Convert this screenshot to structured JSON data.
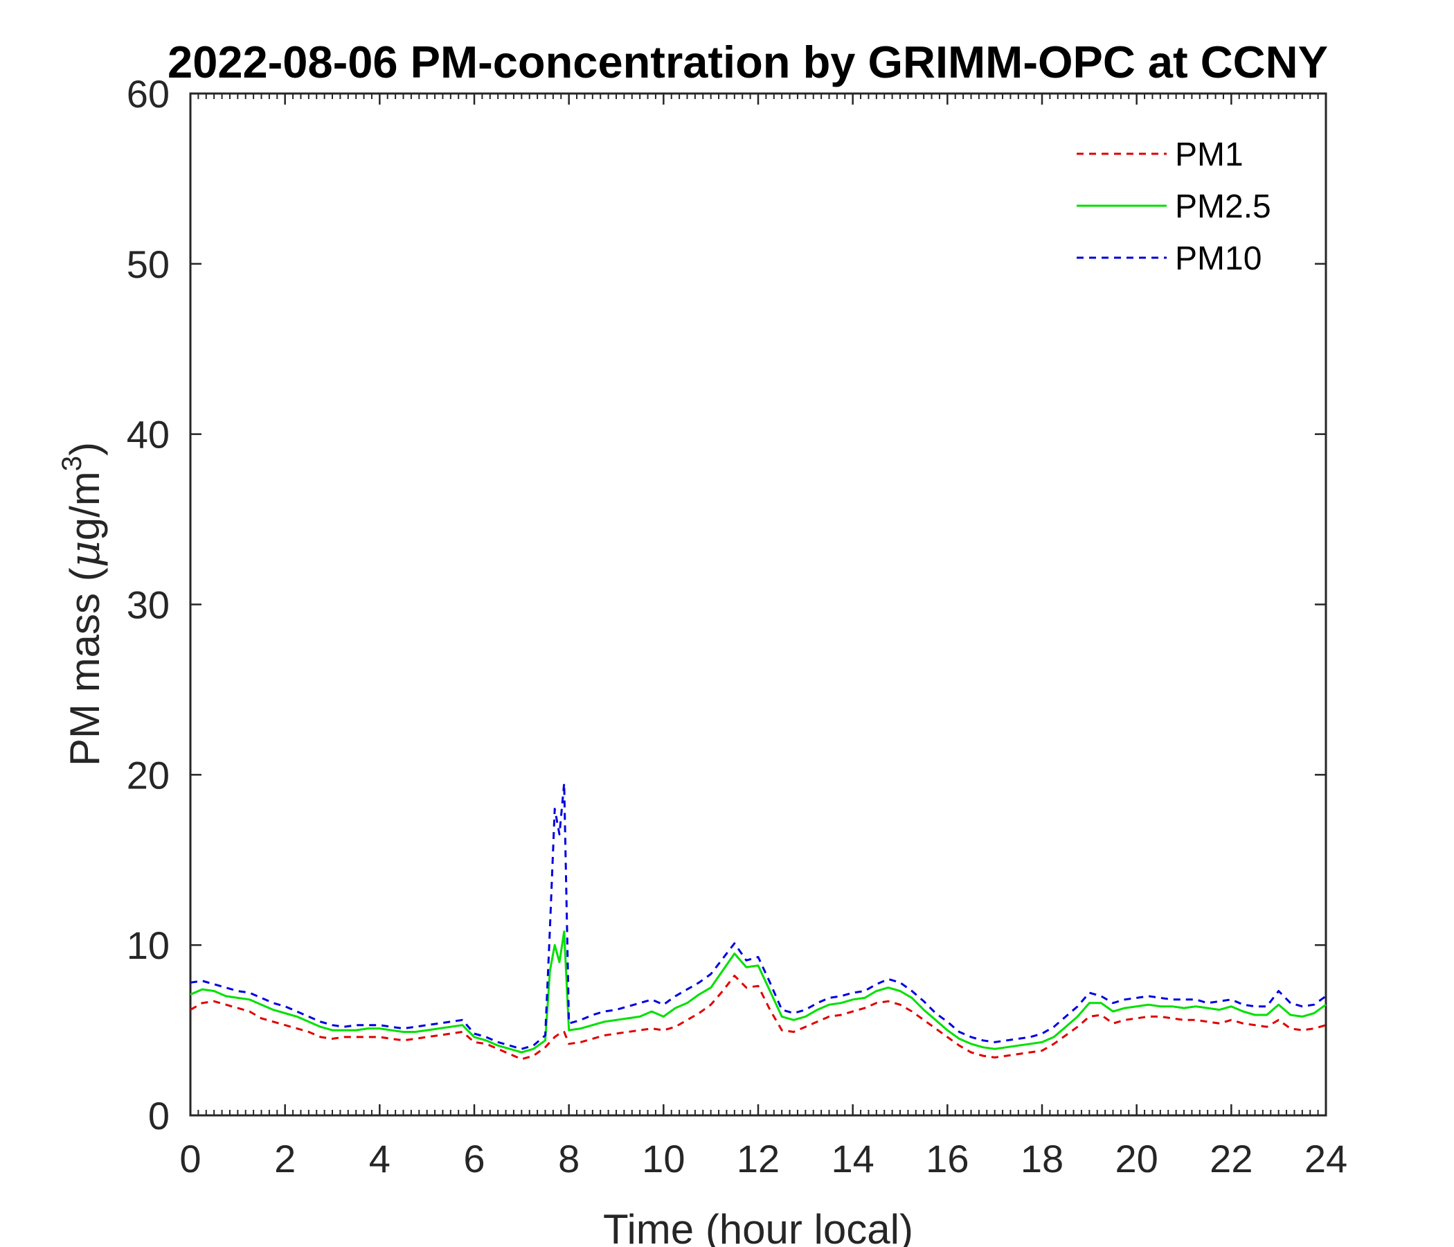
{
  "chart_data": {
    "type": "line",
    "title": "2022-08-06 PM-concentration by GRIMM-OPC at CCNY",
    "xlabel": "Time (hour local)",
    "ylabel": "PM mass (μg/m³)",
    "ylabel_parts": {
      "main": "PM mass (",
      "mu": "μ",
      "unit": "g/m",
      "sup": "3",
      "close": ")"
    },
    "xlim": [
      0,
      24
    ],
    "ylim": [
      0,
      60
    ],
    "xticks": [
      0,
      2,
      4,
      6,
      8,
      10,
      12,
      14,
      16,
      18,
      20,
      22,
      24
    ],
    "yticks": [
      0,
      10,
      20,
      30,
      40,
      50,
      60
    ],
    "xtick_labels": [
      "0",
      "2",
      "4",
      "6",
      "8",
      "10",
      "12",
      "14",
      "16",
      "18",
      "20",
      "22",
      "24"
    ],
    "ytick_labels": [
      "0",
      "10",
      "20",
      "30",
      "40",
      "50",
      "60"
    ],
    "grid": false,
    "legend_position": "top-right",
    "series": [
      {
        "name": "PM1",
        "color": "#e00000",
        "style": "dashed",
        "x": [
          0,
          0.25,
          0.5,
          0.75,
          1,
          1.25,
          1.5,
          1.75,
          2,
          2.25,
          2.5,
          2.75,
          3,
          3.25,
          3.5,
          3.75,
          4,
          4.25,
          4.5,
          4.75,
          5,
          5.25,
          5.5,
          5.75,
          6,
          6.25,
          6.5,
          6.75,
          7,
          7.25,
          7.5,
          7.6,
          7.7,
          7.8,
          7.9,
          8,
          8.25,
          8.5,
          8.75,
          9,
          9.25,
          9.5,
          9.75,
          10,
          10.25,
          10.5,
          10.75,
          11,
          11.25,
          11.5,
          11.75,
          12,
          12.25,
          12.5,
          12.75,
          13,
          13.25,
          13.5,
          13.75,
          14,
          14.25,
          14.5,
          14.75,
          15,
          15.25,
          15.5,
          15.75,
          16,
          16.25,
          16.5,
          16.75,
          17,
          17.25,
          17.5,
          17.75,
          18,
          18.25,
          18.5,
          18.75,
          19,
          19.25,
          19.5,
          19.75,
          20,
          20.25,
          20.5,
          20.75,
          21,
          21.25,
          21.5,
          21.75,
          22,
          22.25,
          22.5,
          22.75,
          23,
          23.25,
          23.5,
          23.75,
          24
        ],
        "values": [
          6.2,
          6.6,
          6.7,
          6.5,
          6.3,
          6.1,
          5.7,
          5.5,
          5.3,
          5.1,
          4.9,
          4.6,
          4.5,
          4.6,
          4.6,
          4.6,
          4.6,
          4.5,
          4.4,
          4.5,
          4.6,
          4.7,
          4.8,
          4.9,
          4.3,
          4.2,
          3.9,
          3.6,
          3.3,
          3.5,
          4.0,
          4.3,
          4.6,
          4.8,
          4.9,
          4.2,
          4.3,
          4.5,
          4.7,
          4.8,
          4.9,
          5.0,
          5.1,
          5.0,
          5.2,
          5.6,
          6.0,
          6.5,
          7.3,
          8.2,
          7.5,
          7.6,
          6.2,
          5.0,
          4.9,
          5.2,
          5.5,
          5.8,
          5.9,
          6.1,
          6.3,
          6.6,
          6.7,
          6.5,
          6.1,
          5.6,
          5.1,
          4.6,
          4.1,
          3.7,
          3.5,
          3.4,
          3.5,
          3.6,
          3.7,
          3.8,
          4.2,
          4.7,
          5.2,
          5.8,
          5.9,
          5.4,
          5.6,
          5.7,
          5.8,
          5.8,
          5.7,
          5.6,
          5.6,
          5.5,
          5.4,
          5.6,
          5.4,
          5.3,
          5.2,
          5.6,
          5.1,
          5.0,
          5.1,
          5.3
        ]
      },
      {
        "name": "PM2.5",
        "color": "#00e000",
        "style": "solid",
        "x": [
          0,
          0.25,
          0.5,
          0.75,
          1,
          1.25,
          1.5,
          1.75,
          2,
          2.25,
          2.5,
          2.75,
          3,
          3.25,
          3.5,
          3.75,
          4,
          4.25,
          4.5,
          4.75,
          5,
          5.25,
          5.5,
          5.75,
          6,
          6.25,
          6.5,
          6.75,
          7,
          7.25,
          7.5,
          7.6,
          7.7,
          7.8,
          7.9,
          8,
          8.25,
          8.5,
          8.75,
          9,
          9.25,
          9.5,
          9.75,
          10,
          10.25,
          10.5,
          10.75,
          11,
          11.25,
          11.5,
          11.75,
          12,
          12.25,
          12.5,
          12.75,
          13,
          13.25,
          13.5,
          13.75,
          14,
          14.25,
          14.5,
          14.75,
          15,
          15.25,
          15.5,
          15.75,
          16,
          16.25,
          16.5,
          16.75,
          17,
          17.25,
          17.5,
          17.75,
          18,
          18.25,
          18.5,
          18.75,
          19,
          19.25,
          19.5,
          19.75,
          20,
          20.25,
          20.5,
          20.75,
          21,
          21.25,
          21.5,
          21.75,
          22,
          22.25,
          22.5,
          22.75,
          23,
          23.25,
          23.5,
          23.75,
          24
        ],
        "values": [
          7.1,
          7.4,
          7.3,
          7.0,
          6.9,
          6.8,
          6.5,
          6.2,
          6.0,
          5.8,
          5.5,
          5.2,
          5.0,
          5.0,
          5.0,
          5.1,
          5.1,
          5.0,
          4.9,
          4.9,
          5.0,
          5.1,
          5.2,
          5.3,
          4.6,
          4.4,
          4.1,
          3.9,
          3.7,
          3.9,
          4.4,
          8.5,
          10.0,
          9.0,
          10.8,
          5.0,
          5.1,
          5.3,
          5.5,
          5.6,
          5.7,
          5.8,
          6.1,
          5.8,
          6.3,
          6.6,
          7.1,
          7.5,
          8.5,
          9.5,
          8.7,
          8.8,
          7.3,
          5.8,
          5.6,
          5.8,
          6.2,
          6.5,
          6.6,
          6.8,
          6.9,
          7.3,
          7.5,
          7.3,
          6.9,
          6.2,
          5.6,
          5.0,
          4.5,
          4.2,
          4.0,
          3.9,
          4.0,
          4.1,
          4.2,
          4.3,
          4.6,
          5.2,
          5.8,
          6.6,
          6.6,
          6.1,
          6.3,
          6.4,
          6.5,
          6.4,
          6.4,
          6.3,
          6.4,
          6.3,
          6.2,
          6.4,
          6.1,
          5.9,
          5.9,
          6.5,
          5.9,
          5.8,
          6.0,
          6.5
        ]
      },
      {
        "name": "PM10",
        "color": "#0000e0",
        "style": "dashed",
        "x": [
          0,
          0.25,
          0.5,
          0.75,
          1,
          1.25,
          1.5,
          1.75,
          2,
          2.25,
          2.5,
          2.75,
          3,
          3.25,
          3.5,
          3.75,
          4,
          4.25,
          4.5,
          4.75,
          5,
          5.25,
          5.5,
          5.75,
          6,
          6.25,
          6.5,
          6.75,
          7,
          7.25,
          7.5,
          7.6,
          7.7,
          7.8,
          7.9,
          8,
          8.25,
          8.5,
          8.75,
          9,
          9.25,
          9.5,
          9.75,
          10,
          10.25,
          10.5,
          10.75,
          11,
          11.25,
          11.5,
          11.75,
          12,
          12.25,
          12.5,
          12.75,
          13,
          13.25,
          13.5,
          13.75,
          14,
          14.25,
          14.5,
          14.75,
          15,
          15.25,
          15.5,
          15.75,
          16,
          16.25,
          16.5,
          16.75,
          17,
          17.25,
          17.5,
          17.75,
          18,
          18.25,
          18.5,
          18.75,
          19,
          19.25,
          19.5,
          19.75,
          20,
          20.25,
          20.5,
          20.75,
          21,
          21.25,
          21.5,
          21.75,
          22,
          22.25,
          22.5,
          22.75,
          23,
          23.25,
          23.5,
          23.75,
          24
        ],
        "values": [
          7.8,
          7.9,
          7.7,
          7.5,
          7.3,
          7.2,
          6.9,
          6.6,
          6.4,
          6.1,
          5.8,
          5.5,
          5.3,
          5.2,
          5.3,
          5.3,
          5.3,
          5.2,
          5.1,
          5.2,
          5.3,
          5.4,
          5.5,
          5.6,
          4.8,
          4.6,
          4.3,
          4.1,
          3.9,
          4.1,
          4.7,
          11.0,
          18.0,
          16.5,
          19.5,
          5.4,
          5.6,
          5.9,
          6.1,
          6.2,
          6.4,
          6.6,
          6.8,
          6.5,
          7.0,
          7.4,
          7.8,
          8.3,
          9.2,
          10.1,
          9.1,
          9.3,
          7.8,
          6.2,
          6.0,
          6.2,
          6.6,
          6.9,
          7.0,
          7.2,
          7.3,
          7.7,
          8.0,
          7.8,
          7.3,
          6.7,
          6.0,
          5.5,
          4.9,
          4.6,
          4.4,
          4.3,
          4.4,
          4.5,
          4.6,
          4.8,
          5.2,
          5.8,
          6.4,
          7.2,
          7.0,
          6.6,
          6.8,
          6.9,
          7.0,
          6.9,
          6.8,
          6.8,
          6.8,
          6.6,
          6.7,
          6.8,
          6.5,
          6.4,
          6.4,
          7.3,
          6.6,
          6.4,
          6.5,
          7.0
        ]
      }
    ]
  }
}
